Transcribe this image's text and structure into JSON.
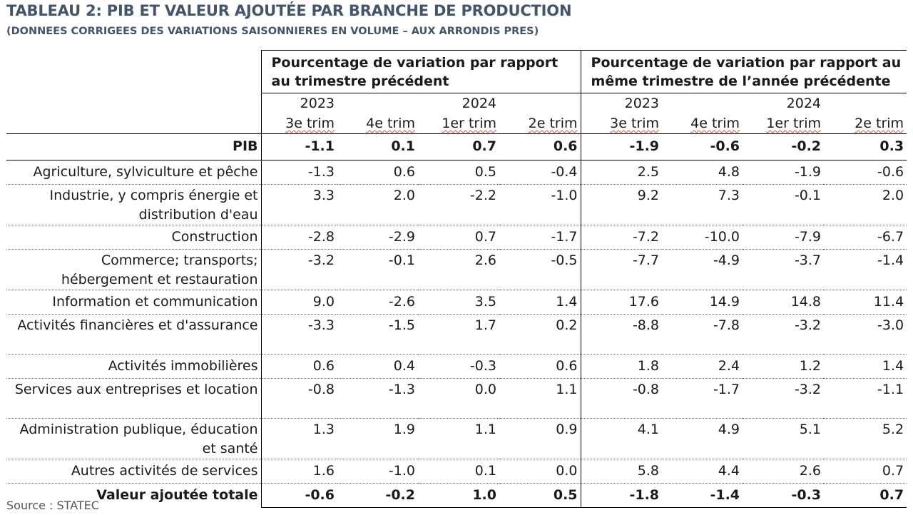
{
  "title": "TABLEAU 2: PIB ET VALEUR AJOUTÉE PAR BRANCHE DE PRODUCTION",
  "subtitle": "(DONNEES CORRIGEES DES VARIATIONS SAISONNIERES EN VOLUME – AUX ARRONDIS PRES)",
  "group_left": "Pourcentage de variation par rapport au trimestre précédent",
  "group_right": "Pourcentage de variation par rapport au même trimestre de l’année précédente",
  "years": [
    "2023",
    "2024",
    "2023",
    "2024"
  ],
  "quarters": [
    "3e trim",
    "4e trim",
    "1er trim",
    "2e trim",
    "3e trim",
    "4e trim",
    "1er trim",
    "2e trim"
  ],
  "rows": [
    {
      "label": "PIB",
      "values": [
        "-1.1",
        "0.1",
        "0.7",
        "0.6",
        "-1.9",
        "-0.6",
        "-0.2",
        "0.3"
      ]
    },
    {
      "label": "Agriculture, sylviculture et pêche",
      "values": [
        "-1.3",
        "0.6",
        "0.5",
        "-0.4",
        "2.5",
        "4.8",
        "-1.9",
        "-0.6"
      ]
    },
    {
      "label": "Industrie, y compris énergie et distribution d'eau",
      "values": [
        "3.3",
        "2.0",
        "-2.2",
        "-1.0",
        "9.2",
        "7.3",
        "-0.1",
        "2.0"
      ]
    },
    {
      "label": "Construction",
      "values": [
        "-2.8",
        "-2.9",
        "0.7",
        "-1.7",
        "-7.2",
        "-10.0",
        "-7.9",
        "-6.7"
      ]
    },
    {
      "label": "Commerce; transports; hébergement et restauration",
      "values": [
        "-3.2",
        "-0.1",
        "2.6",
        "-0.5",
        "-7.7",
        "-4.9",
        "-3.7",
        "-1.4"
      ]
    },
    {
      "label": "Information et communication",
      "values": [
        "9.0",
        "-2.6",
        "3.5",
        "1.4",
        "17.6",
        "14.9",
        "14.8",
        "11.4"
      ]
    },
    {
      "label": "Activités financières et d'assurance",
      "values": [
        "-3.3",
        "-1.5",
        "1.7",
        "0.2",
        "-8.8",
        "-7.8",
        "-3.2",
        "-3.0"
      ]
    },
    {
      "label": "Activités immobilières",
      "values": [
        "0.6",
        "0.4",
        "-0.3",
        "0.6",
        "1.8",
        "2.4",
        "1.2",
        "1.4"
      ]
    },
    {
      "label": "Services aux entreprises et location",
      "values": [
        "-0.8",
        "-1.3",
        "0.0",
        "1.1",
        "-0.8",
        "-1.7",
        "-3.2",
        "-1.1"
      ]
    },
    {
      "label": "Administration publique, éducation et santé",
      "values": [
        "1.3",
        "1.9",
        "1.1",
        "0.9",
        "4.1",
        "4.9",
        "5.1",
        "5.2"
      ]
    },
    {
      "label": "Autres activités de services",
      "values": [
        "1.6",
        "-1.0",
        "0.1",
        "0.0",
        "5.8",
        "4.4",
        "2.6",
        "0.7"
      ]
    },
    {
      "label": "Valeur ajoutée totale",
      "values": [
        "-0.6",
        "-0.2",
        "1.0",
        "0.5",
        "-1.8",
        "-1.4",
        "-0.3",
        "0.7"
      ]
    }
  ],
  "source": "Source : STATEC"
}
